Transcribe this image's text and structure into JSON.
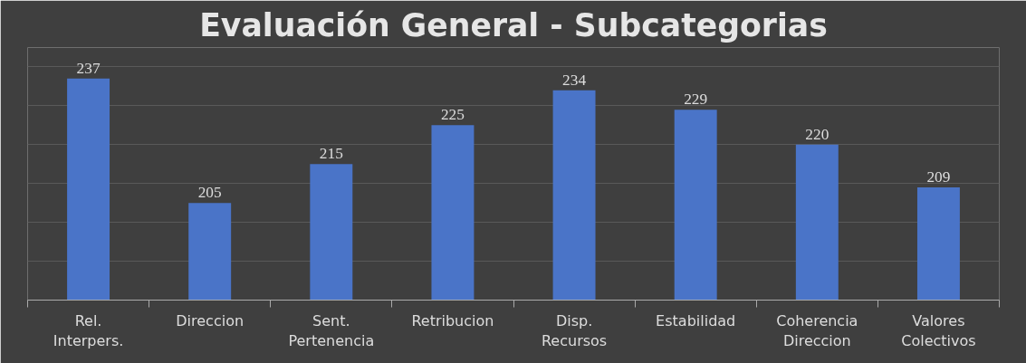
{
  "chart_data": {
    "type": "bar",
    "title": "Evaluación General - Subcategorias",
    "categories": [
      "Rel. Interpers.",
      "Direccion",
      "Sent. Pertenencia",
      "Retribucion",
      "Disp. Recursos",
      "Estabilidad",
      "Coherencia Direccion",
      "Valores Colectivos"
    ],
    "values": [
      237,
      205,
      215,
      225,
      234,
      229,
      220,
      209
    ],
    "color": "#4a74c8",
    "ylim": [
      180,
      245
    ],
    "yticks": [
      {
        "value": 180,
        "label": null
      },
      {
        "value": 190,
        "label": null
      },
      {
        "value": 200,
        "label": null
      },
      {
        "value": 210,
        "label": null
      },
      {
        "value": 220,
        "label": null
      },
      {
        "value": 230,
        "label": null
      },
      {
        "value": 240,
        "label": null
      }
    ],
    "grid": "y",
    "data_labels": true,
    "tick_labels": "x"
  }
}
